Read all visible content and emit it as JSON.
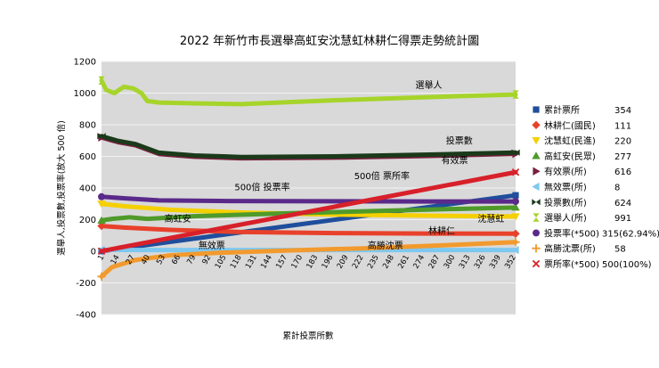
{
  "chart_data": {
    "type": "line",
    "title": "2022 年新竹市長選舉高虹安沈慧虹林耕仁得票走勢統計圖",
    "xlabel": "累計投票所數",
    "ylabel": "選舉人,投票數,投票率(放大 500 倍)",
    "ylim": [
      -400,
      1200
    ],
    "yticks": [
      -400,
      -200,
      0,
      200,
      400,
      600,
      800,
      1000,
      1200
    ],
    "xlim": [
      1,
      354
    ],
    "x_tick_labels": [
      "1",
      "14",
      "27",
      "40",
      "53",
      "66",
      "79",
      "92",
      "105",
      "118",
      "131",
      "144",
      "157",
      "170",
      "183",
      "196",
      "209",
      "222",
      "235",
      "248",
      "261",
      "274",
      "287",
      "300",
      "313",
      "326",
      "339",
      "352"
    ],
    "grid": "horizontal",
    "series": [
      {
        "name": "累計票所",
        "value_label": "354",
        "color": "#1f4e9c",
        "marker": "square",
        "x": [
          1,
          354
        ],
        "y": [
          1,
          354
        ]
      },
      {
        "name": "林耕仁(國民)",
        "value_label": "111",
        "color": "#e8412b",
        "marker": "diamond",
        "x": [
          1,
          20,
          60,
          120,
          200,
          280,
          354
        ],
        "y": [
          160,
          150,
          135,
          122,
          115,
          112,
          111
        ]
      },
      {
        "name": "沈慧虹(民進)",
        "value_label": "220",
        "color": "#f5d000",
        "marker": "triangle-down",
        "x": [
          1,
          20,
          60,
          120,
          200,
          280,
          354
        ],
        "y": [
          300,
          285,
          262,
          245,
          232,
          225,
          220
        ]
      },
      {
        "name": "高虹安(民眾)",
        "value_label": "277",
        "color": "#4f9a2a",
        "marker": "triangle",
        "x": [
          1,
          10,
          25,
          40,
          80,
          160,
          250,
          354
        ],
        "y": [
          195,
          205,
          215,
          205,
          222,
          240,
          258,
          277
        ]
      },
      {
        "name": "有效票(所)",
        "value_label": "616",
        "color": "#7a1f3d",
        "marker": "triangle-right",
        "x": [
          1,
          15,
          30,
          50,
          80,
          120,
          200,
          280,
          354
        ],
        "y": [
          720,
          690,
          670,
          615,
          598,
          588,
          592,
          603,
          616
        ]
      },
      {
        "name": "無效票(所)",
        "value_label": "8",
        "color": "#7ec8f0",
        "marker": "triangle-left",
        "x": [
          1,
          30,
          100,
          200,
          354
        ],
        "y": [
          9,
          8,
          8,
          8,
          8
        ]
      },
      {
        "name": "投票數(所)",
        "value_label": "624",
        "color": "#1a3a1a",
        "marker": "bowtie",
        "x": [
          1,
          15,
          30,
          50,
          80,
          120,
          200,
          280,
          354
        ],
        "y": [
          728,
          698,
          678,
          623,
          606,
          596,
          600,
          611,
          624
        ]
      },
      {
        "name": "選舉人(所)",
        "value_label": "991",
        "color": "#a6d42a",
        "marker": "hourglass",
        "x": [
          1,
          5,
          12,
          20,
          28,
          35,
          40,
          50,
          80,
          120,
          200,
          280,
          354
        ],
        "y": [
          1080,
          1020,
          1000,
          1040,
          1030,
          1000,
          950,
          940,
          935,
          930,
          955,
          975,
          991
        ]
      },
      {
        "name": "投票率(*500)",
        "value_label": "315(62.94%)",
        "color": "#5a2a8a",
        "marker": "circle",
        "x": [
          1,
          20,
          50,
          100,
          200,
          280,
          354
        ],
        "y": [
          345,
          335,
          322,
          318,
          316,
          315,
          315
        ]
      },
      {
        "name": "高勝沈票(所)",
        "value_label": "58",
        "color": "#f29a2e",
        "marker": "plus",
        "x": [
          1,
          10,
          30,
          60,
          100,
          160,
          230,
          300,
          354
        ],
        "y": [
          -160,
          -100,
          -55,
          -25,
          -10,
          5,
          20,
          40,
          58
        ]
      },
      {
        "name": "票所率(*500)",
        "value_label": "500(100%)",
        "color": "#d8202a",
        "marker": "x",
        "x": [
          1,
          354
        ],
        "y": [
          1,
          500
        ]
      }
    ],
    "annotations": [
      {
        "text": "選舉人",
        "x": 280,
        "y": 1030
      },
      {
        "text": "投票數",
        "x": 306,
        "y": 680
      },
      {
        "text": "有效票",
        "x": 302,
        "y": 555
      },
      {
        "text": "500倍 投票率",
        "x": 138,
        "y": 385
      },
      {
        "text": "500倍 票所率",
        "x": 240,
        "y": 455
      },
      {
        "text": "高虹安",
        "x": 66,
        "y": 185
      },
      {
        "text": "沈慧虹",
        "x": 333,
        "y": 185
      },
      {
        "text": "林耕仁",
        "x": 291,
        "y": 110
      },
      {
        "text": "無效票",
        "x": 95,
        "y": 18
      },
      {
        "text": "高勝沈票",
        "x": 243,
        "y": 18
      }
    ]
  }
}
